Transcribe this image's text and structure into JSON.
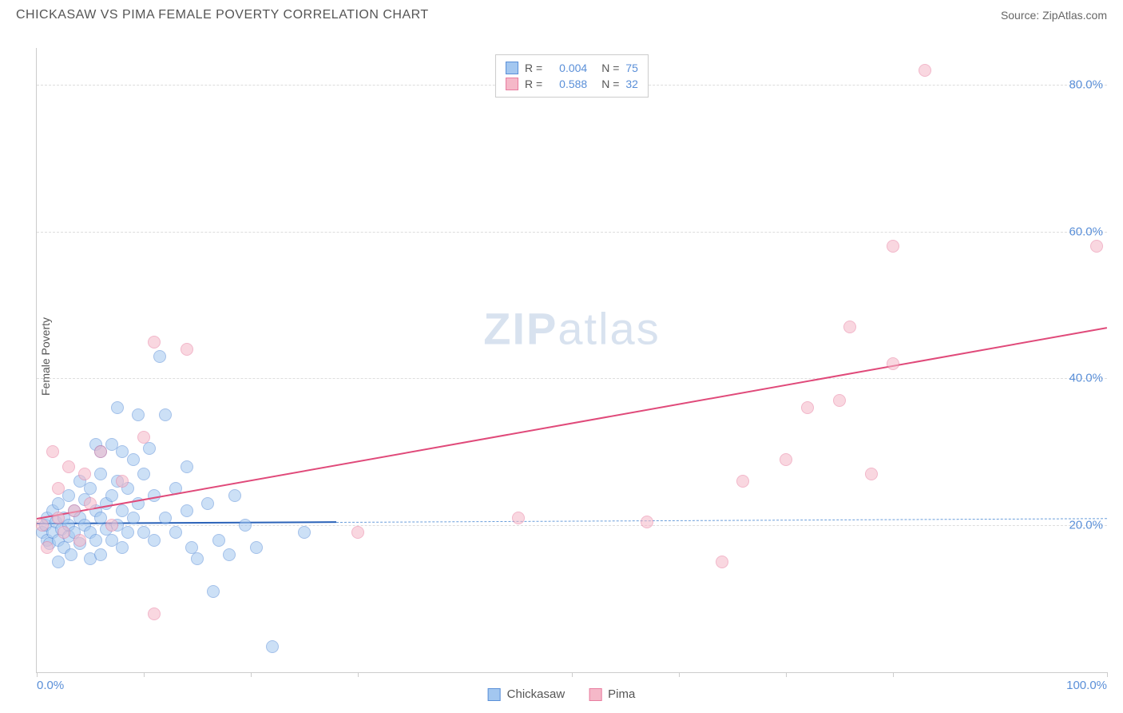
{
  "title": "CHICKASAW VS PIMA FEMALE POVERTY CORRELATION CHART",
  "source_label": "Source:",
  "source_value": "ZipAtlas.com",
  "ylabel": "Female Poverty",
  "watermark_bold": "ZIP",
  "watermark_light": "atlas",
  "chart": {
    "xlim": [
      0,
      100
    ],
    "ylim": [
      0,
      85
    ],
    "xtick_positions": [
      0,
      10,
      20,
      30,
      50,
      60,
      70,
      80,
      100
    ],
    "xtick_labels": {
      "0": "0.0%",
      "100": "100.0%"
    },
    "ytick_positions": [
      20,
      40,
      60,
      80
    ],
    "ytick_labels": [
      "20.0%",
      "40.0%",
      "60.0%",
      "80.0%"
    ],
    "grid_color": "#dddddd",
    "axis_color": "#cccccc",
    "tick_label_color": "#5a8fd8",
    "background": "#ffffff",
    "marker_radius": 8,
    "marker_opacity": 0.55
  },
  "series": [
    {
      "name": "Chickasaw",
      "fill_color": "#a3c7f0",
      "stroke_color": "#5a8fd8",
      "line_color": "#2a62b8",
      "dash_color": "#6a9edb",
      "R": "0.004",
      "N": "75",
      "regression": {
        "x1": 0,
        "y1": 20.3,
        "x2": 28,
        "y2": 20.5,
        "dash_to_x": 100
      },
      "points": [
        [
          0.5,
          19
        ],
        [
          0.8,
          20
        ],
        [
          1,
          18
        ],
        [
          1,
          21
        ],
        [
          1.2,
          17.5
        ],
        [
          1.5,
          22
        ],
        [
          1.5,
          19
        ],
        [
          1.8,
          20.5
        ],
        [
          2,
          18
        ],
        [
          2,
          23
        ],
        [
          2,
          15
        ],
        [
          2.3,
          19.5
        ],
        [
          2.5,
          17
        ],
        [
          2.5,
          21
        ],
        [
          3,
          24
        ],
        [
          3,
          18.5
        ],
        [
          3,
          20
        ],
        [
          3.2,
          16
        ],
        [
          3.5,
          22
        ],
        [
          3.5,
          19
        ],
        [
          4,
          26
        ],
        [
          4,
          21
        ],
        [
          4,
          17.5
        ],
        [
          4.5,
          23.5
        ],
        [
          4.5,
          20
        ],
        [
          5,
          19
        ],
        [
          5,
          25
        ],
        [
          5,
          15.5
        ],
        [
          5.5,
          31
        ],
        [
          5.5,
          22
        ],
        [
          5.5,
          18
        ],
        [
          6,
          27
        ],
        [
          6,
          30
        ],
        [
          6,
          21
        ],
        [
          6,
          16
        ],
        [
          6.5,
          23
        ],
        [
          6.5,
          19.5
        ],
        [
          7,
          31
        ],
        [
          7,
          24
        ],
        [
          7,
          18
        ],
        [
          7.5,
          36
        ],
        [
          7.5,
          26
        ],
        [
          7.5,
          20
        ],
        [
          8,
          30
        ],
        [
          8,
          22
        ],
        [
          8,
          17
        ],
        [
          8.5,
          25
        ],
        [
          8.5,
          19
        ],
        [
          9,
          29
        ],
        [
          9,
          21
        ],
        [
          9.5,
          35
        ],
        [
          9.5,
          23
        ],
        [
          10,
          27
        ],
        [
          10,
          19
        ],
        [
          10.5,
          30.5
        ],
        [
          11,
          24
        ],
        [
          11,
          18
        ],
        [
          11.5,
          43
        ],
        [
          12,
          35
        ],
        [
          12,
          21
        ],
        [
          13,
          25
        ],
        [
          13,
          19
        ],
        [
          14,
          28
        ],
        [
          14,
          22
        ],
        [
          14.5,
          17
        ],
        [
          15,
          15.5
        ],
        [
          16,
          23
        ],
        [
          16.5,
          11
        ],
        [
          17,
          18
        ],
        [
          18,
          16
        ],
        [
          18.5,
          24
        ],
        [
          19.5,
          20
        ],
        [
          20.5,
          17
        ],
        [
          22,
          3.5
        ],
        [
          25,
          19
        ]
      ]
    },
    {
      "name": "Pima",
      "fill_color": "#f5b8c8",
      "stroke_color": "#e87da0",
      "line_color": "#e04a7a",
      "dash_color": "#f098b4",
      "R": "0.588",
      "N": "32",
      "regression": {
        "x1": 0,
        "y1": 21,
        "x2": 100,
        "y2": 47
      },
      "points": [
        [
          0.5,
          20
        ],
        [
          1,
          17
        ],
        [
          1.5,
          30
        ],
        [
          2,
          21
        ],
        [
          2,
          25
        ],
        [
          2.5,
          19
        ],
        [
          3,
          28
        ],
        [
          3.5,
          22
        ],
        [
          4,
          18
        ],
        [
          4.5,
          27
        ],
        [
          5,
          23
        ],
        [
          6,
          30
        ],
        [
          7,
          20
        ],
        [
          8,
          26
        ],
        [
          10,
          32
        ],
        [
          11,
          45
        ],
        [
          11,
          8
        ],
        [
          14,
          44
        ],
        [
          30,
          19
        ],
        [
          45,
          21
        ],
        [
          57,
          20.5
        ],
        [
          64,
          15
        ],
        [
          66,
          26
        ],
        [
          70,
          29
        ],
        [
          72,
          36
        ],
        [
          75,
          37
        ],
        [
          76,
          47
        ],
        [
          78,
          27
        ],
        [
          80,
          42
        ],
        [
          80,
          58
        ],
        [
          83,
          82
        ],
        [
          99,
          58
        ]
      ]
    }
  ],
  "legend_top_label_R": "R =",
  "legend_top_label_N": "N ="
}
